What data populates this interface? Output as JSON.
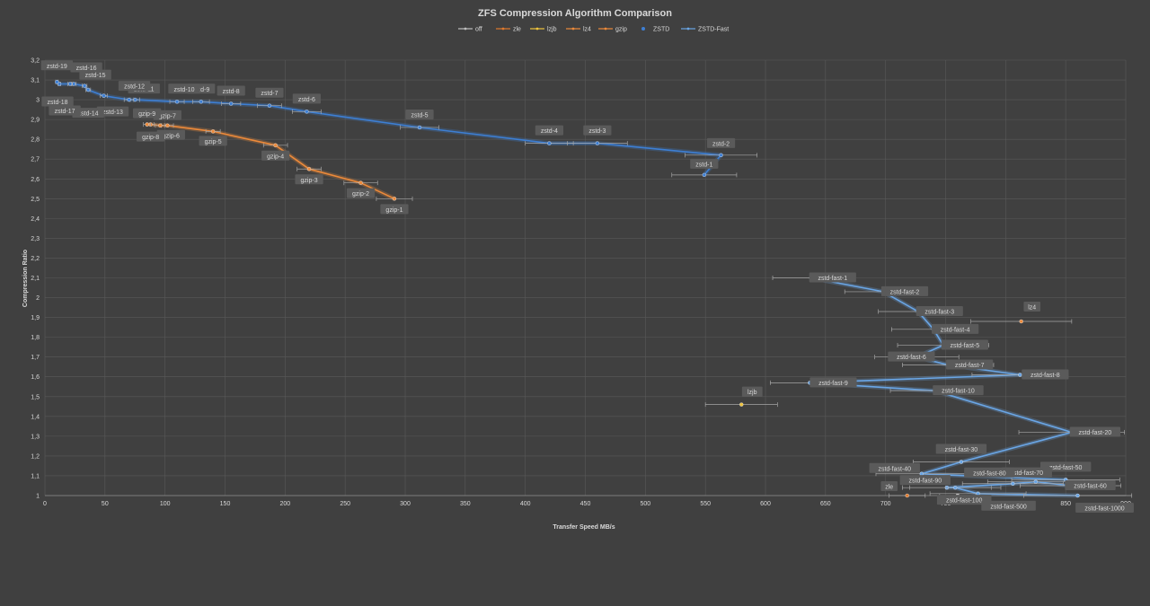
{
  "chart_data": {
    "type": "scatter",
    "title": "ZFS Compression Algorithm Comparison",
    "xlabel": "Transfer Speed MB/s",
    "ylabel": "Compression Ratio",
    "xlim": [
      0,
      900
    ],
    "ylim": [
      1,
      3.2
    ],
    "x_ticks": [
      0,
      50,
      100,
      150,
      200,
      250,
      300,
      350,
      400,
      450,
      500,
      550,
      600,
      650,
      700,
      750,
      800,
      850,
      900
    ],
    "y_ticks": [
      "1",
      "1,1",
      "1,2",
      "1,3",
      "1,4",
      "1,5",
      "1,6",
      "1,7",
      "1,8",
      "1,9",
      "2",
      "2,1",
      "2,2",
      "2,3",
      "2,4",
      "2,5",
      "2,6",
      "2,7",
      "2,8",
      "2,9",
      "3",
      "3,1",
      "3,2"
    ],
    "grid": true,
    "legend_position": "top",
    "series": [
      {
        "name": "off",
        "color": "#bfbfbf",
        "line": false,
        "points": [
          {
            "x": 760,
            "y": 1.0,
            "xerr": 15
          }
        ]
      },
      {
        "name": "zle",
        "color": "#e07a2c",
        "line": false,
        "points": [
          {
            "label": "zle",
            "x": 718,
            "y": 1.0,
            "xerr": 15
          }
        ]
      },
      {
        "name": "lzjb",
        "color": "#f0c43c",
        "line": false,
        "points": [
          {
            "label": "lzjb",
            "x": 580,
            "y": 1.46,
            "xerr": 30
          }
        ]
      },
      {
        "name": "lz4",
        "color": "#ed8a3a",
        "line": false,
        "points": [
          {
            "label": "lz4",
            "x": 813,
            "y": 1.88,
            "xerr": 42
          }
        ]
      },
      {
        "name": "gzip",
        "color": "#ed8a3a",
        "line": true,
        "points": [
          {
            "label": "gzip-1",
            "x": 291,
            "y": 2.5,
            "xerr": 15
          },
          {
            "label": "gzip-2",
            "x": 263,
            "y": 2.58,
            "xerr": 14
          },
          {
            "label": "gzip-3",
            "x": 220,
            "y": 2.65,
            "xerr": 10
          },
          {
            "label": "gzip-4",
            "x": 192,
            "y": 2.77,
            "xerr": 10
          },
          {
            "label": "gzip-5",
            "x": 140,
            "y": 2.84,
            "xerr": 6
          },
          {
            "label": "gzip-6",
            "x": 102,
            "y": 2.87,
            "xerr": 5
          },
          {
            "label": "gzip-7",
            "x": 96,
            "y": 2.87,
            "xerr": 4
          },
          {
            "label": "gzip-8",
            "x": 88,
            "y": 2.875,
            "xerr": 3
          },
          {
            "label": "gzip-9",
            "x": 85,
            "y": 2.875,
            "xerr": 3
          }
        ]
      },
      {
        "name": "ZSTD",
        "color": "#3d7fd4",
        "line": true,
        "points": [
          {
            "label": "zstd-1",
            "x": 549,
            "y": 2.62,
            "xerr": 27
          },
          {
            "label": "zstd-2",
            "x": 563,
            "y": 2.72,
            "xerr": 30
          },
          {
            "label": "zstd-3",
            "x": 460,
            "y": 2.78,
            "xerr": 25
          },
          {
            "label": "zstd-4",
            "x": 420,
            "y": 2.78,
            "xerr": 20
          },
          {
            "label": "zstd-5",
            "x": 312,
            "y": 2.86,
            "xerr": 16
          },
          {
            "label": "zstd-6",
            "x": 218,
            "y": 2.94,
            "xerr": 12
          },
          {
            "label": "zstd-7",
            "x": 187,
            "y": 2.97,
            "xerr": 10
          },
          {
            "label": "zstd-8",
            "x": 155,
            "y": 2.98,
            "xerr": 8
          },
          {
            "label": "zstd-9",
            "x": 130,
            "y": 2.99,
            "xerr": 7
          },
          {
            "label": "zstd-10",
            "x": 110,
            "y": 2.99,
            "xerr": 6
          },
          {
            "label": "zstd-11",
            "x": 75,
            "y": 3.0,
            "xerr": 4
          },
          {
            "label": "zstd-12",
            "x": 70,
            "y": 3.0,
            "xerr": 4
          },
          {
            "label": "zstd-13",
            "x": 49,
            "y": 3.02,
            "xerr": 3
          },
          {
            "label": "zstd-14",
            "x": 36,
            "y": 3.05,
            "xerr": 2
          },
          {
            "label": "zstd-15",
            "x": 33,
            "y": 3.07,
            "xerr": 2
          },
          {
            "label": "zstd-16",
            "x": 24,
            "y": 3.08,
            "xerr": 2
          },
          {
            "label": "zstd-17",
            "x": 21,
            "y": 3.08,
            "xerr": 2
          },
          {
            "label": "zstd-18",
            "x": 12,
            "y": 3.08,
            "xerr": 1
          },
          {
            "label": "zstd-19",
            "x": 10,
            "y": 3.09,
            "xerr": 1
          }
        ]
      },
      {
        "name": "ZSTD-Fast",
        "color": "#6aa6e6",
        "line": true,
        "points": [
          {
            "label": "zstd-fast-1",
            "x": 638,
            "y": 2.1,
            "xerr": 32
          },
          {
            "label": "zstd-fast-2",
            "x": 698,
            "y": 2.03,
            "xerr": 32
          },
          {
            "label": "zstd-fast-3",
            "x": 727,
            "y": 1.93,
            "xerr": 33
          },
          {
            "label": "zstd-fast-4",
            "x": 740,
            "y": 1.84,
            "xerr": 35
          },
          {
            "label": "zstd-fast-5",
            "x": 748,
            "y": 1.76,
            "xerr": 38
          },
          {
            "label": "zstd-fast-6",
            "x": 726,
            "y": 1.7,
            "xerr": 35
          },
          {
            "label": "zstd-fast-7",
            "x": 752,
            "y": 1.66,
            "xerr": 38
          },
          {
            "label": "zstd-fast-8",
            "x": 812,
            "y": 1.61,
            "xerr": 40
          },
          {
            "label": "zstd-fast-9",
            "x": 637,
            "y": 1.57,
            "xerr": 33
          },
          {
            "label": "zstd-fast-10",
            "x": 741,
            "y": 1.53,
            "xerr": 37
          },
          {
            "label": "zstd-fast-20",
            "x": 855,
            "y": 1.32,
            "xerr": 44
          },
          {
            "label": "zstd-fast-30",
            "x": 763,
            "y": 1.17,
            "xerr": 40
          },
          {
            "label": "zstd-fast-40",
            "x": 730,
            "y": 1.11,
            "xerr": 38
          },
          {
            "label": "zstd-fast-50",
            "x": 850,
            "y": 1.08,
            "xerr": 45
          },
          {
            "label": "zstd-fast-60",
            "x": 854,
            "y": 1.05,
            "xerr": 42
          },
          {
            "label": "zstd-fast-70",
            "x": 825,
            "y": 1.07,
            "xerr": 40
          },
          {
            "label": "zstd-fast-80",
            "x": 806,
            "y": 1.06,
            "xerr": 42
          },
          {
            "label": "zstd-fast-90",
            "x": 751,
            "y": 1.04,
            "xerr": 37
          },
          {
            "label": "zstd-fast-100",
            "x": 758,
            "y": 1.04,
            "xerr": 38
          },
          {
            "label": "zstd-fast-500",
            "x": 777,
            "y": 1.01,
            "xerr": 40
          },
          {
            "label": "zstd-fast-1000",
            "x": 860,
            "y": 1.0,
            "xerr": 45
          }
        ]
      }
    ]
  }
}
